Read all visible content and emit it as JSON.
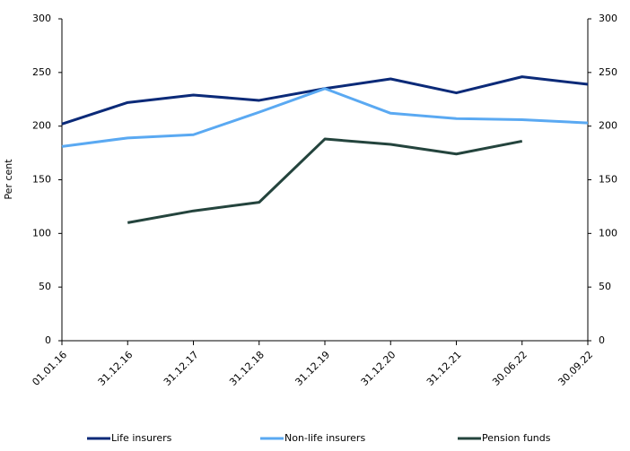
{
  "chart_data": {
    "type": "line",
    "y_label": "Per cent",
    "categories": [
      "01.01.16",
      "31.12.16",
      "31.12.17",
      "31.12.18",
      "31.12.19",
      "31.12.20",
      "31.12.21",
      "30.06.22",
      "30.09.22"
    ],
    "series": [
      {
        "name": "Life insurers",
        "color": "#0b2a78",
        "values": [
          202,
          222,
          229,
          224,
          235,
          244,
          231,
          246,
          239
        ]
      },
      {
        "name": "Non-life insurers",
        "color": "#5aa9f2",
        "values": [
          181,
          189,
          192,
          213,
          235,
          212,
          207,
          206,
          203
        ]
      },
      {
        "name": "Pension funds",
        "color": "#24443d",
        "values": [
          null,
          110,
          121,
          129,
          188,
          183,
          174,
          186,
          null
        ]
      }
    ],
    "ylim": [
      0,
      300
    ],
    "yticks": [
      0,
      50,
      100,
      150,
      200,
      250,
      300
    ],
    "y2lim": [
      0,
      300
    ],
    "y2ticks": [
      0,
      50,
      100,
      150,
      200,
      250,
      300
    ]
  }
}
